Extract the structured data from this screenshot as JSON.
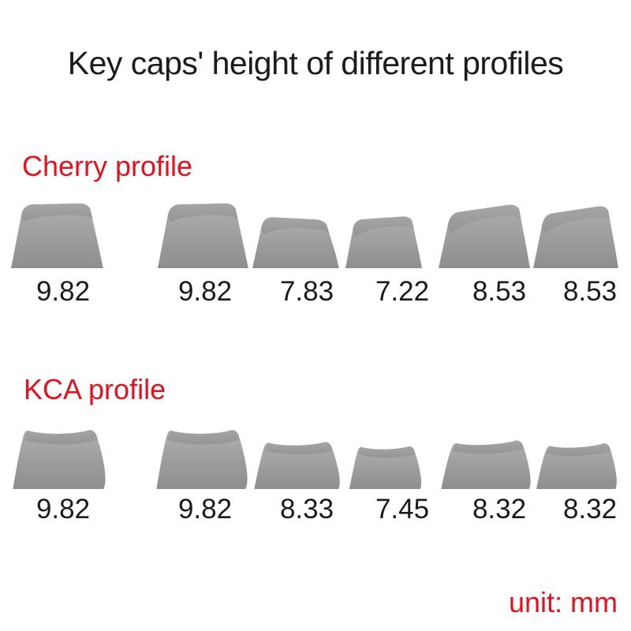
{
  "title": "Key caps' height of different profiles",
  "unit_label": "unit: mm",
  "colors": {
    "accent_red": "#e8101c",
    "text": "#1b1b1b",
    "keycap_gray": "#9c9c9c"
  },
  "sections": [
    {
      "id": "cherry",
      "heading": "Cherry profile",
      "keycaps": [
        {
          "height_mm": "9.82"
        },
        {
          "height_mm": "9.82"
        },
        {
          "height_mm": "7.83"
        },
        {
          "height_mm": "7.22"
        },
        {
          "height_mm": "8.53"
        },
        {
          "height_mm": "8.53"
        }
      ]
    },
    {
      "id": "kca",
      "heading": "KCA profile",
      "keycaps": [
        {
          "height_mm": "9.82"
        },
        {
          "height_mm": "9.82"
        },
        {
          "height_mm": "8.33"
        },
        {
          "height_mm": "7.45"
        },
        {
          "height_mm": "8.32"
        },
        {
          "height_mm": "8.32"
        }
      ]
    }
  ]
}
